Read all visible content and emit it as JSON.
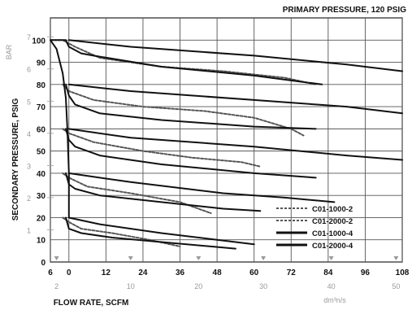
{
  "chart_data": {
    "type": "line",
    "title": "PRIMARY PRESSURE, 120 PSIG",
    "xlabel": "FLOW RATE, SCFM",
    "ylabel": "SECONDARY PRESSURE, PSIG",
    "ylabel_secondary": "BAR",
    "xlabel_secondary": "dm³n/s",
    "xlim": [
      -6,
      108
    ],
    "ylim": [
      0,
      110
    ],
    "x_ticks": [
      "6",
      "0",
      "12",
      "24",
      "36",
      "48",
      "60",
      "72",
      "84",
      "96",
      "108"
    ],
    "x_ticks_values": [
      -6,
      0,
      12,
      24,
      36,
      48,
      60,
      72,
      84,
      96,
      108
    ],
    "x_secondary_ticks": [
      "2",
      "10",
      "20",
      "30",
      "40",
      "50"
    ],
    "x_secondary_values": [
      -4,
      20,
      42,
      63,
      85,
      106
    ],
    "y_ticks": [
      "0",
      "10",
      "20",
      "30",
      "40",
      "50",
      "60",
      "70",
      "80",
      "90",
      "100"
    ],
    "y_secondary_ticks": [
      "1",
      "2",
      "3",
      "4",
      "5",
      "6",
      "7"
    ],
    "y_secondary_values": [
      14.5,
      29,
      43.5,
      58,
      72.5,
      87,
      101.5
    ],
    "grid": true,
    "legend": {
      "position": "bottom-right",
      "entries": [
        "C01-1000-2",
        "C01-2000-2",
        "C01-1000-4",
        "C01-2000-4"
      ]
    },
    "series": [
      {
        "name": "C01-1000-2",
        "style": "dashed",
        "curves": [
          {
            "points": [
              [
                -6,
                100
              ],
              [
                -2,
                100
              ],
              [
                2,
                97
              ],
              [
                10,
                92
              ],
              [
                30,
                88
              ],
              [
                50,
                86
              ],
              [
                70,
                83
              ],
              [
                80,
                80
              ]
            ]
          },
          {
            "points": [
              [
                -2,
                80
              ],
              [
                0,
                77
              ],
              [
                8,
                73
              ],
              [
                24,
                70
              ],
              [
                44,
                68
              ],
              [
                60,
                65
              ],
              [
                72,
                60
              ],
              [
                76,
                57
              ]
            ]
          },
          {
            "points": [
              [
                -2,
                60
              ],
              [
                0,
                58
              ],
              [
                8,
                54
              ],
              [
                24,
                50
              ],
              [
                40,
                47
              ],
              [
                56,
                45
              ],
              [
                62,
                43
              ]
            ]
          },
          {
            "points": [
              [
                -2,
                40
              ],
              [
                0,
                38
              ],
              [
                6,
                34
              ],
              [
                20,
                31
              ],
              [
                36,
                27
              ],
              [
                46,
                22
              ]
            ]
          },
          {
            "points": [
              [
                -2,
                20
              ],
              [
                0,
                18
              ],
              [
                4,
                15
              ],
              [
                14,
                13
              ],
              [
                26,
                10
              ],
              [
                36,
                7
              ]
            ]
          }
        ]
      },
      {
        "name": "C01-2000-2",
        "style": "dashed",
        "curves": []
      },
      {
        "name": "C01-1000-4",
        "style": "solid",
        "curves": [
          {
            "points": [
              [
                -6,
                100
              ],
              [
                -1,
                100
              ],
              [
                0,
                97
              ],
              [
                4,
                94
              ],
              [
                8,
                93
              ],
              [
                30,
                88
              ],
              [
                60,
                84
              ],
              [
                82,
                80
              ]
            ]
          },
          {
            "points": [
              [
                -1,
                80
              ],
              [
                0,
                75
              ],
              [
                2,
                71
              ],
              [
                10,
                67
              ],
              [
                30,
                64
              ],
              [
                60,
                61
              ],
              [
                80,
                60
              ]
            ]
          },
          {
            "points": [
              [
                -1,
                60
              ],
              [
                0,
                55
              ],
              [
                2,
                52
              ],
              [
                10,
                48
              ],
              [
                30,
                44
              ],
              [
                60,
                40
              ],
              [
                80,
                38
              ]
            ]
          },
          {
            "points": [
              [
                -1,
                40
              ],
              [
                0,
                35
              ],
              [
                2,
                33
              ],
              [
                10,
                30
              ],
              [
                30,
                27
              ],
              [
                50,
                24
              ],
              [
                62,
                23
              ]
            ]
          },
          {
            "points": [
              [
                -1,
                20
              ],
              [
                0,
                15
              ],
              [
                4,
                13
              ],
              [
                14,
                11
              ],
              [
                30,
                9
              ],
              [
                46,
                7
              ],
              [
                54,
                6
              ]
            ]
          }
        ]
      },
      {
        "name": "C01-2000-4",
        "style": "solid",
        "curves": [
          {
            "points": [
              [
                0,
                100
              ],
              [
                20,
                97
              ],
              [
                60,
                93
              ],
              [
                90,
                89
              ],
              [
                108,
                86
              ]
            ]
          },
          {
            "points": [
              [
                0,
                80
              ],
              [
                20,
                77
              ],
              [
                60,
                73
              ],
              [
                90,
                70
              ],
              [
                108,
                67
              ]
            ]
          },
          {
            "points": [
              [
                0,
                60
              ],
              [
                20,
                56
              ],
              [
                60,
                52
              ],
              [
                90,
                48
              ],
              [
                108,
                46
              ]
            ]
          },
          {
            "points": [
              [
                0,
                40
              ],
              [
                20,
                36
              ],
              [
                50,
                31
              ],
              [
                70,
                29
              ],
              [
                86,
                27
              ]
            ]
          },
          {
            "points": [
              [
                0,
                20
              ],
              [
                10,
                17
              ],
              [
                30,
                13
              ],
              [
                48,
                10
              ],
              [
                60,
                8
              ]
            ]
          }
        ]
      }
    ],
    "envelope": {
      "points": [
        [
          -6,
          100
        ],
        [
          -4,
          96
        ],
        [
          -2,
          85
        ],
        [
          -1,
          74
        ],
        [
          -0.5,
          60
        ],
        [
          0,
          40
        ],
        [
          0,
          20
        ]
      ]
    }
  }
}
